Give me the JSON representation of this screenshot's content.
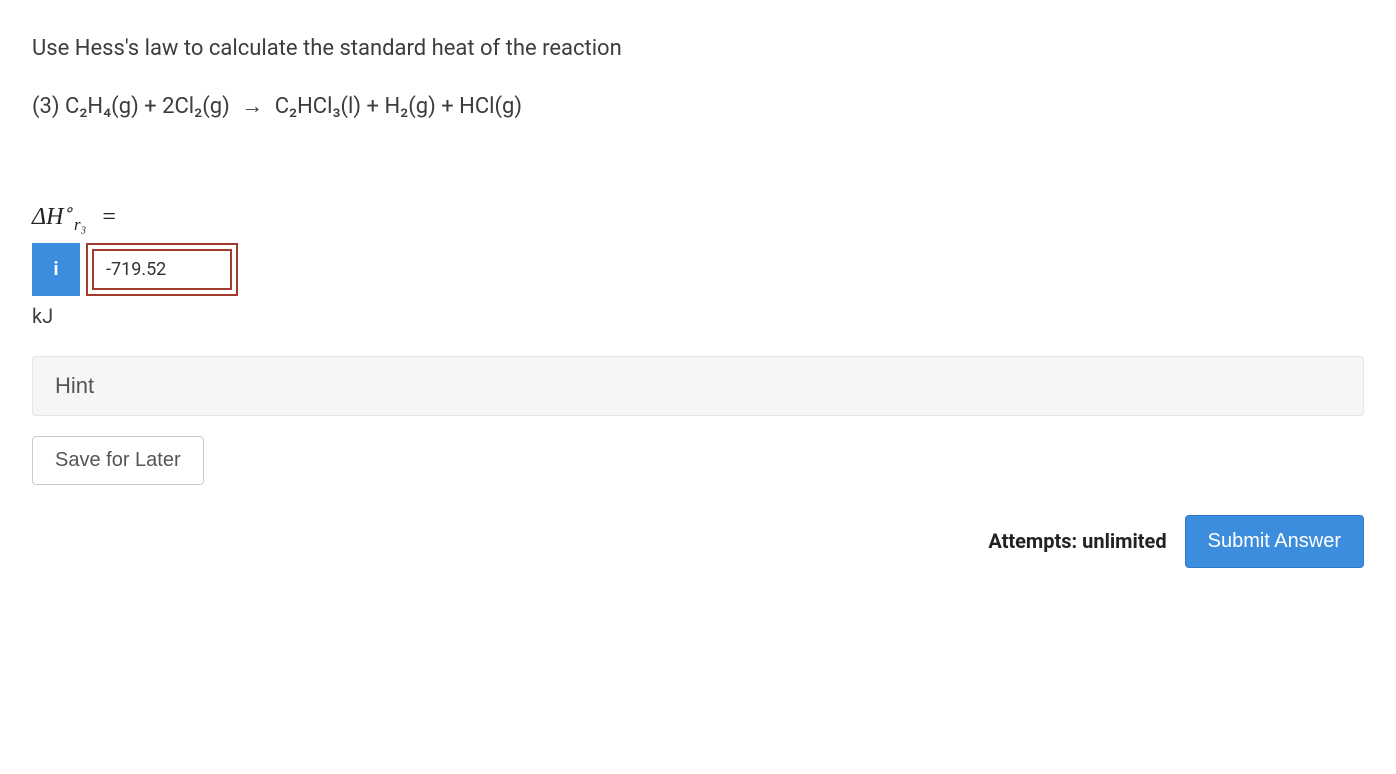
{
  "question": {
    "prompt": "Use Hess's law to calculate the standard heat of the reaction",
    "equation_number": "(3)",
    "reactants": "C₂H₄(g) + 2Cl₂(g)",
    "arrow": "→",
    "products": "C₂HCl₃(l) + H₂(g) + HCl(g)"
  },
  "answer": {
    "label_prefix": "ΔH",
    "label_sup": "∘",
    "label_sub": "r₃",
    "equals": "=",
    "value": "-719.52",
    "unit": "kJ",
    "info_icon": "i"
  },
  "controls": {
    "hint_label": "Hint",
    "save_label": "Save for Later",
    "attempts_label": "Attempts: unlimited",
    "submit_label": "Submit Answer"
  },
  "colors": {
    "primary_blue": "#3c8dde",
    "error_border": "#a23a2e",
    "text": "#3d3d3d",
    "hint_bg": "#f6f6f6"
  }
}
